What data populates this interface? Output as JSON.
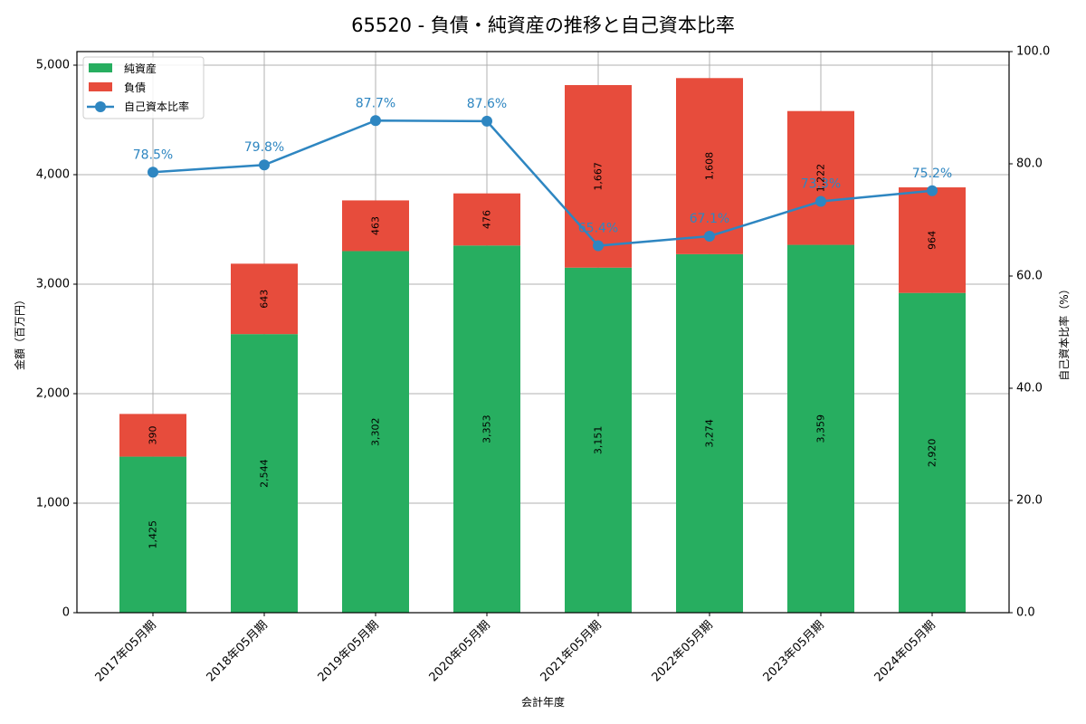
{
  "chart_data": {
    "type": "bar",
    "subtype": "stacked_bar_with_line_secondary_axis",
    "title": "65520 - 負債・純資産の推移と自己資本比率",
    "xlabel": "会計年度",
    "ylabel": "金額（百万円）",
    "y2label": "自己資本比率（%）",
    "categories": [
      "2017年05月期",
      "2018年05月期",
      "2019年05月期",
      "2020年05月期",
      "2021年05月期",
      "2022年05月期",
      "2023年05月期",
      "2024年05月期"
    ],
    "series": [
      {
        "name": "純資産",
        "type": "bar",
        "stack": "total",
        "axis": "left",
        "color": "#27ae60",
        "values": [
          1425,
          2544,
          3302,
          3353,
          3151,
          3274,
          3359,
          2920
        ],
        "labels": [
          "1,425",
          "2,544",
          "3,302",
          "3,353",
          "3,151",
          "3,274",
          "3,359",
          "2,920"
        ]
      },
      {
        "name": "負債",
        "type": "bar",
        "stack": "total",
        "axis": "left",
        "color": "#e74c3c",
        "values": [
          390,
          643,
          463,
          476,
          1667,
          1608,
          1222,
          964
        ],
        "labels": [
          "390",
          "643",
          "463",
          "476",
          "1,667",
          "1,608",
          "1,222",
          "964"
        ]
      },
      {
        "name": "自己資本比率",
        "type": "line",
        "axis": "right",
        "color": "#2e86c1",
        "marker": "circle",
        "values": [
          78.5,
          79.8,
          87.7,
          87.6,
          65.4,
          67.1,
          73.3,
          75.2
        ],
        "labels": [
          "78.5%",
          "79.8%",
          "87.7%",
          "87.6%",
          "65.4%",
          "67.1%",
          "73.3%",
          "75.2%"
        ]
      }
    ],
    "ylim": [
      0,
      5150
    ],
    "y2lim": [
      0,
      100
    ],
    "yticks": [
      0,
      1000,
      2000,
      3000,
      4000,
      5000
    ],
    "ytick_labels": [
      "0",
      "1,000",
      "2,000",
      "3,000",
      "4,000",
      "5,000"
    ],
    "y2ticks": [
      0,
      20,
      40,
      60,
      80,
      100
    ],
    "y2tick_labels": [
      "0.0",
      "20.0",
      "40.0",
      "60.0",
      "80.0",
      "100.0"
    ],
    "grid": true,
    "legend_position": "upper left",
    "legend": [
      "純資産",
      "負債",
      "自己資本比率"
    ]
  }
}
